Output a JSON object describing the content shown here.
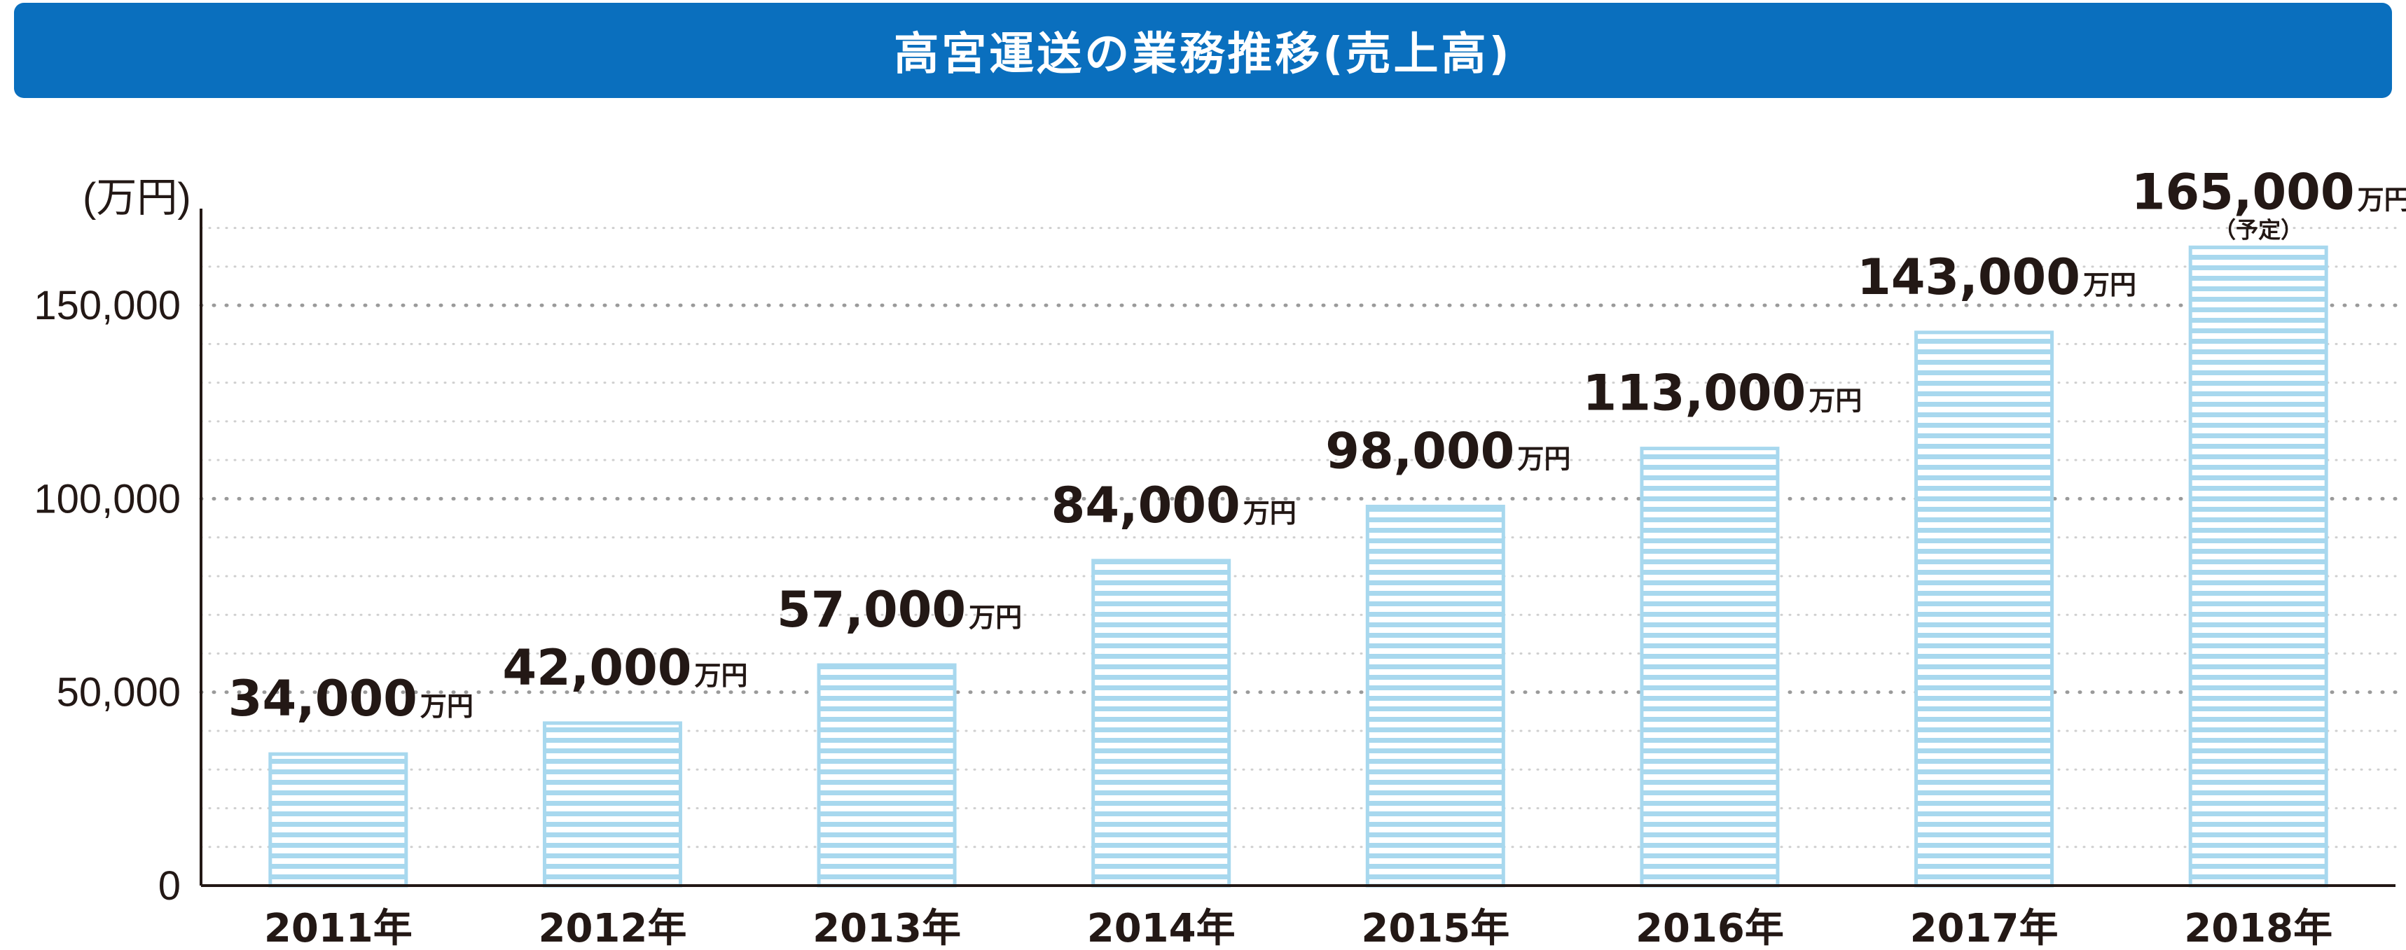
{
  "colors": {
    "title_bg": "#0a6fbe",
    "bar_stripe": "#a8d8ee",
    "grid": "#b9b9b9",
    "text": "#231815"
  },
  "chart_data": {
    "type": "bar",
    "title": "高宮運送の業務推移(売上高)",
    "ylabel": "(万円)",
    "xlabel": "",
    "ylim": [
      0,
      175000
    ],
    "yticks": [
      0,
      50000,
      100000,
      150000
    ],
    "ytick_labels": [
      "0",
      "50,000",
      "100,000",
      "150,000"
    ],
    "grid": true,
    "categories": [
      "2011年",
      "2012年",
      "2013年",
      "2014年",
      "2015年",
      "2016年",
      "2017年",
      "2018年"
    ],
    "values": [
      34000,
      42000,
      57000,
      84000,
      98000,
      113000,
      143000,
      165000
    ],
    "value_labels": [
      "34,000",
      "42,000",
      "57,000",
      "84,000",
      "98,000",
      "113,000",
      "143,000",
      "165,000"
    ],
    "value_unit": "万円",
    "annotations": [
      {
        "category": "2018年",
        "text": "（予定）"
      }
    ]
  }
}
